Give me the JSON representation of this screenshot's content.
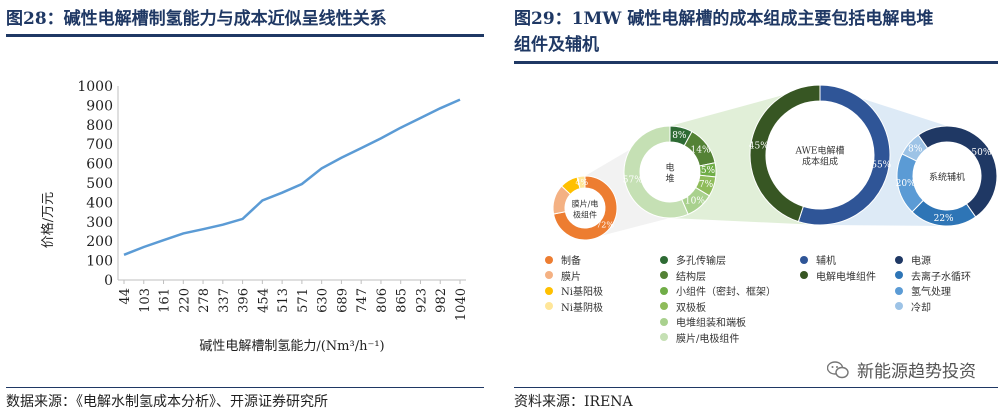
{
  "left": {
    "title": "图28：碱性电解槽制氢能力与成本近似呈线性关系",
    "source": "数据来源：《电解水制氢成本分析》、开源证券研究所"
  },
  "right": {
    "title_line1": "图29：1MW 碱性电解槽的成本组成主要包括电解电堆",
    "title_line2": "组件及辅机",
    "source": "资料来源：IRENA",
    "watermark": "新能源趋势投资"
  },
  "chart_data": [
    {
      "type": "line",
      "title": "",
      "xlabel": "碱性电解槽制氢能力/(Nm³/h⁻¹)",
      "ylabel": "价格/万元",
      "ylim": [
        0,
        1000
      ],
      "yticks": [
        0,
        100,
        200,
        300,
        400,
        500,
        600,
        700,
        800,
        900,
        1000
      ],
      "color": "#5b9bd5",
      "grid": false,
      "x": [
        44,
        103,
        161,
        220,
        278,
        337,
        396,
        454,
        513,
        571,
        630,
        689,
        747,
        806,
        865,
        923,
        982,
        1040
      ],
      "xtick_labels": [
        "44",
        "103",
        "161",
        "220",
        "278",
        "337",
        "396",
        "454",
        "513",
        "571",
        "630",
        "689",
        "747",
        "806",
        "865",
        "923",
        "982",
        "1040"
      ],
      "y": [
        130,
        170,
        205,
        240,
        262,
        285,
        315,
        410,
        450,
        495,
        575,
        630,
        680,
        730,
        785,
        835,
        885,
        930
      ]
    },
    {
      "type": "pie",
      "style": "nested-donuts",
      "rings": [
        {
          "name": "膜片/电极组件",
          "center_label": "膜片/电\n极组件",
          "slices": [
            {
              "label": "制备",
              "value": 72,
              "text": "72%",
              "color": "#ed7d31"
            },
            {
              "label": "膜片",
              "value": 15,
              "text": "",
              "color": "#f4b183"
            },
            {
              "label": "Ni基阳极",
              "value": 9,
              "text": "",
              "color": "#ffc000"
            },
            {
              "label": "Ni基阴极",
              "value": 4,
              "text": "4%",
              "color": "#ffe699"
            }
          ]
        },
        {
          "name": "电堆",
          "center_label": "电\n堆",
          "slices": [
            {
              "label": "多孔传输层",
              "value": 8,
              "text": "8%",
              "color": "#2e6b34"
            },
            {
              "label": "结构层",
              "value": 14,
              "text": "14%",
              "color": "#548235"
            },
            {
              "label": "小组件（密封、框架）",
              "value": 5,
              "text": "5%",
              "color": "#70ad47"
            },
            {
              "label": "双极板",
              "value": 7,
              "text": "7%",
              "color": "#8fbc5b"
            },
            {
              "label": "电堆组装和端板",
              "value": 10,
              "text": "10%",
              "color": "#a9d18e"
            },
            {
              "label": "膜片/电极组件",
              "value": 57,
              "text": "57%",
              "color": "#c5e0b4"
            }
          ]
        },
        {
          "name": "AWE电解槽成本组成",
          "center_label": "AWE电解槽\n成本组成",
          "slices": [
            {
              "label": "辅机",
              "value": 55,
              "text": "55%",
              "color": "#2f5597"
            },
            {
              "label": "电解电堆组件",
              "value": 45,
              "text": "45%",
              "color": "#375623"
            }
          ]
        },
        {
          "name": "系统辅机",
          "center_label": "系统辅机",
          "slices": [
            {
              "label": "电源",
              "value": 50,
              "text": "50%",
              "color": "#1f3864"
            },
            {
              "label": "去离子水循环",
              "value": 22,
              "text": "22%",
              "color": "#2e75b6"
            },
            {
              "label": "氢气处理",
              "value": 20,
              "text": "20%",
              "color": "#5b9bd5"
            },
            {
              "label": "冷却",
              "value": 8,
              "text": "8%",
              "color": "#9dc3e6"
            }
          ]
        }
      ],
      "legend": [
        [
          "制备",
          "#ed7d31"
        ],
        [
          "膜片",
          "#f4b183"
        ],
        [
          "Ni基阳极",
          "#ffc000"
        ],
        [
          "Ni基阴极",
          "#ffe699"
        ],
        [
          "多孔传输层",
          "#2e6b34"
        ],
        [
          "结构层",
          "#548235"
        ],
        [
          "小组件（密封、框架）",
          "#70ad47"
        ],
        [
          "双极板",
          "#8fbc5b"
        ],
        [
          "电堆组装和端板",
          "#a9d18e"
        ],
        [
          "膜片/电极组件",
          "#c5e0b4"
        ],
        [
          "辅机",
          "#2f5597"
        ],
        [
          "电解电堆组件",
          "#375623"
        ],
        [
          "电源",
          "#1f3864"
        ],
        [
          "去离子水循环",
          "#2e75b6"
        ],
        [
          "氢气处理",
          "#5b9bd5"
        ],
        [
          "冷却",
          "#9dc3e6"
        ]
      ]
    }
  ]
}
